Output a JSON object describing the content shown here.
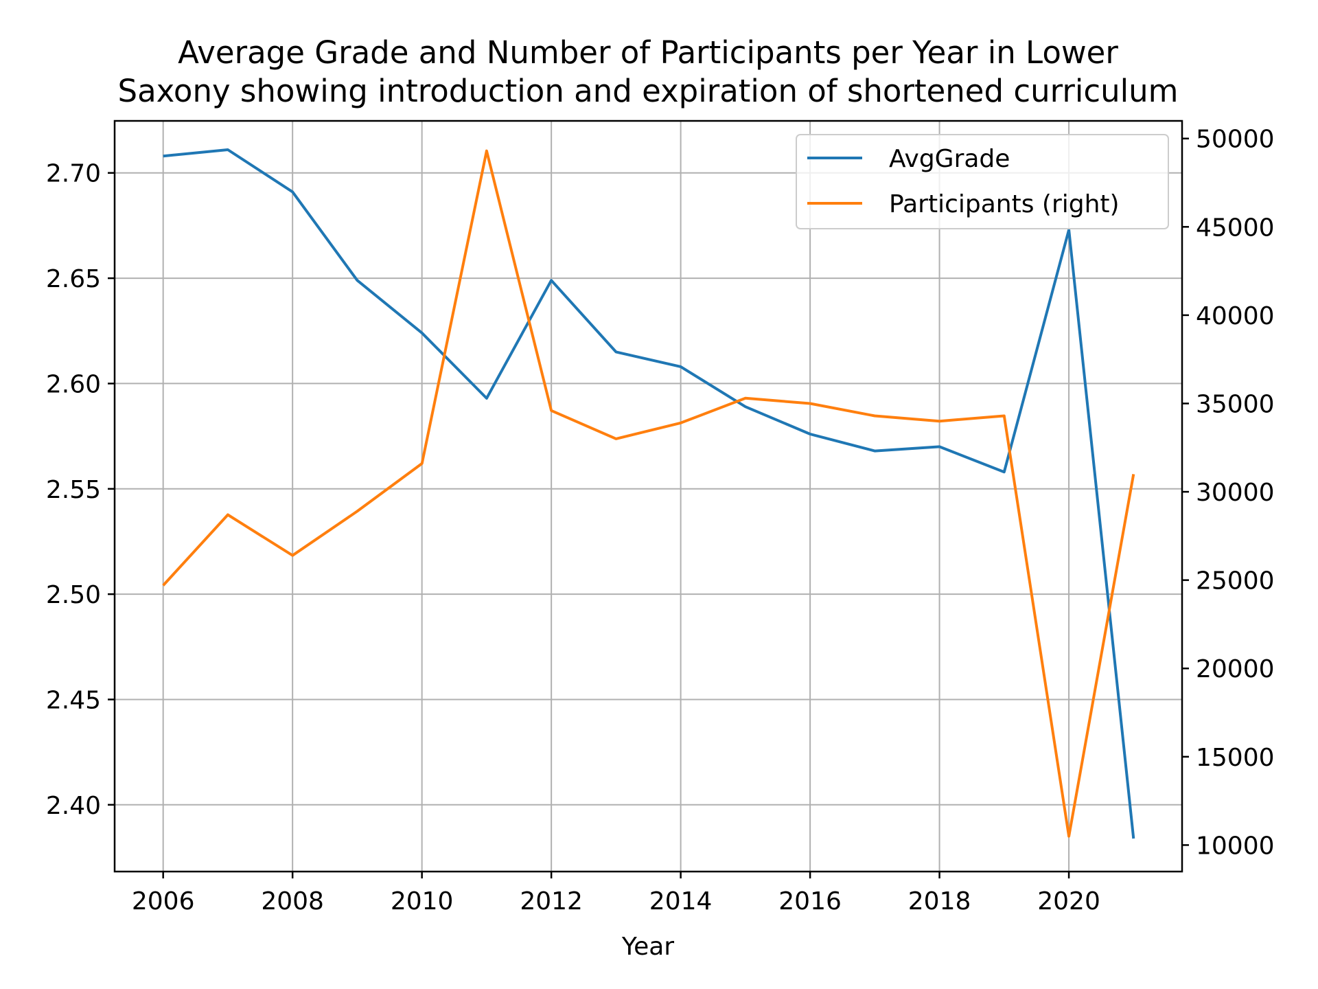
{
  "chart_data": {
    "type": "line",
    "title_lines": [
      "Average Grade and Number of Participants per Year in Lower",
      "Saxony showing introduction and expiration of shortened curriculum"
    ],
    "xlabel": "Year",
    "x": [
      2006,
      2007,
      2008,
      2009,
      2010,
      2011,
      2012,
      2013,
      2014,
      2015,
      2016,
      2017,
      2018,
      2019,
      2020,
      2021
    ],
    "x_ticks": [
      2006,
      2008,
      2010,
      2012,
      2014,
      2016,
      2018,
      2020
    ],
    "x_tick_labels": [
      "2006",
      "2008",
      "2010",
      "2012",
      "2014",
      "2016",
      "2018",
      "2020"
    ],
    "xlim": [
      2005.25,
      2021.75
    ],
    "y_left": {
      "ylim": [
        2.3683,
        2.7247
      ],
      "ticks": [
        2.4,
        2.45,
        2.5,
        2.55,
        2.6,
        2.65,
        2.7
      ],
      "tick_labels": [
        "2.40",
        "2.45",
        "2.50",
        "2.55",
        "2.60",
        "2.65",
        "2.70"
      ]
    },
    "y_right": {
      "ylim": [
        8500,
        51000
      ],
      "ticks": [
        10000,
        15000,
        20000,
        25000,
        30000,
        35000,
        40000,
        45000,
        50000
      ],
      "tick_labels": [
        "10000",
        "15000",
        "20000",
        "25000",
        "30000",
        "35000",
        "40000",
        "45000",
        "50000"
      ]
    },
    "grid": true,
    "legend_position": "top-right",
    "series": [
      {
        "name": "AvgGrade",
        "axis": "left",
        "color": "#1f77b4",
        "values": [
          2.708,
          2.711,
          2.691,
          2.649,
          2.624,
          2.593,
          2.649,
          2.615,
          2.608,
          2.589,
          2.576,
          2.568,
          2.57,
          2.558,
          2.673,
          2.384
        ]
      },
      {
        "name": "Participants (right)",
        "axis": "right",
        "color": "#ff7f0e",
        "values": [
          24700,
          28700,
          26400,
          28900,
          31600,
          49300,
          34600,
          33000,
          33900,
          35300,
          35000,
          34300,
          34000,
          34300,
          10500,
          31000
        ]
      }
    ]
  }
}
